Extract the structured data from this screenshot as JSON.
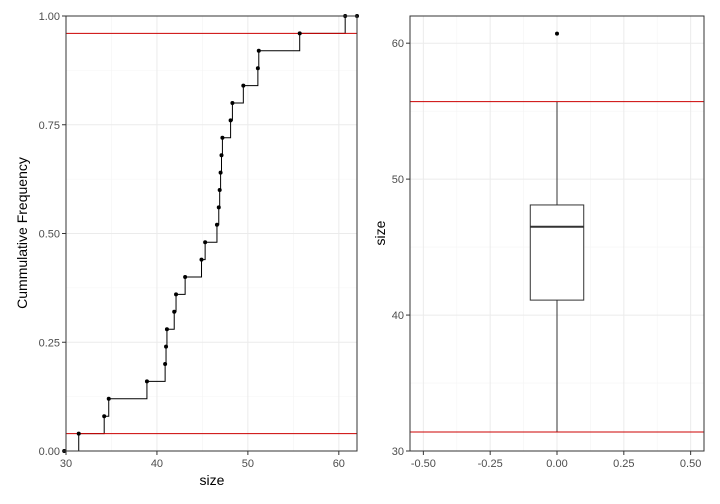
{
  "colors": {
    "reference_line": "#cc0000",
    "points": "#000000",
    "box": "#333333"
  },
  "chart_data": [
    {
      "type": "line",
      "subtype": "ecdf-step",
      "xlabel": "size",
      "ylabel": "Cummulative Frequency",
      "xlim": [
        30,
        62
      ],
      "ylim": [
        0,
        1
      ],
      "xticks": [
        30,
        40,
        50,
        60
      ],
      "yticks": [
        0,
        0.25,
        0.5,
        0.75,
        1
      ],
      "ytick_labels": [
        "0.00",
        "0.25",
        "0.50",
        "0.75",
        "1.00"
      ],
      "grid": true,
      "points": [
        {
          "x": 29.8,
          "y": 0.0
        },
        {
          "x": 31.4,
          "y": 0.04
        },
        {
          "x": 34.2,
          "y": 0.08
        },
        {
          "x": 34.7,
          "y": 0.12
        },
        {
          "x": 38.9,
          "y": 0.16
        },
        {
          "x": 40.9,
          "y": 0.2
        },
        {
          "x": 41.0,
          "y": 0.24
        },
        {
          "x": 41.1,
          "y": 0.28
        },
        {
          "x": 41.9,
          "y": 0.32
        },
        {
          "x": 42.1,
          "y": 0.36
        },
        {
          "x": 43.1,
          "y": 0.4
        },
        {
          "x": 44.9,
          "y": 0.44
        },
        {
          "x": 45.3,
          "y": 0.48
        },
        {
          "x": 46.6,
          "y": 0.52
        },
        {
          "x": 46.8,
          "y": 0.56
        },
        {
          "x": 46.9,
          "y": 0.6
        },
        {
          "x": 47.0,
          "y": 0.64
        },
        {
          "x": 47.1,
          "y": 0.68
        },
        {
          "x": 47.2,
          "y": 0.72
        },
        {
          "x": 48.1,
          "y": 0.76
        },
        {
          "x": 48.3,
          "y": 0.8
        },
        {
          "x": 49.5,
          "y": 0.84
        },
        {
          "x": 51.1,
          "y": 0.88
        },
        {
          "x": 51.2,
          "y": 0.92
        },
        {
          "x": 55.7,
          "y": 0.96
        },
        {
          "x": 60.7,
          "y": 1.0
        },
        {
          "x": 62.0,
          "y": 1.0
        }
      ],
      "hlines": [
        0.04,
        0.96
      ]
    },
    {
      "type": "box",
      "xlabel": "",
      "ylabel": "size",
      "xlim": [
        -0.55,
        0.55
      ],
      "ylim": [
        30,
        62
      ],
      "xticks": [
        -0.5,
        -0.25,
        0,
        0.25,
        0.5
      ],
      "xtick_labels": [
        "-0.50",
        "-0.25",
        "0.00",
        "0.25",
        "0.50"
      ],
      "yticks": [
        30,
        40,
        50,
        60
      ],
      "grid": true,
      "box": {
        "x": 0,
        "halfwidth": 0.1,
        "q1": 41.1,
        "median": 46.5,
        "q3": 48.1,
        "whisker_low": 31.4,
        "whisker_high": 55.7
      },
      "outliers": [
        60.7
      ],
      "hlines": [
        31.4,
        55.7
      ]
    }
  ]
}
